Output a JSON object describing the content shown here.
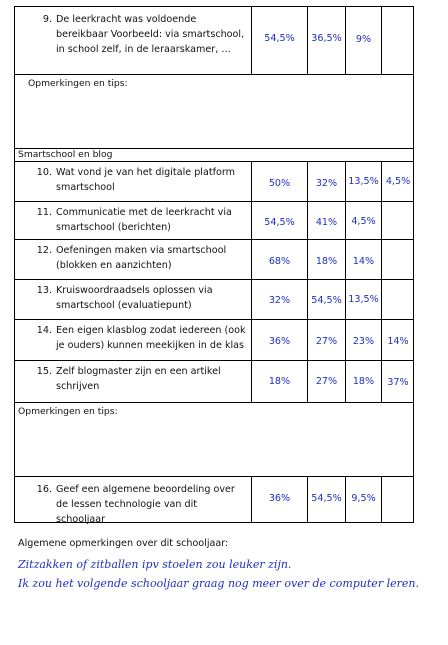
{
  "questions": [
    {
      "num": "9.",
      "text": "De leerkracht was voldoende bereikbaar Voorbeeld: via smartschool, in school zelf, in de leraarskamer, …",
      "p1": "54,5%",
      "p2": "36,5%",
      "p3": "9%",
      "p4": ""
    },
    {
      "num": "10.",
      "text": "Wat vond je van het digitale platform smartschool",
      "p1": "50%",
      "p2": "32%",
      "p3": "13,5%",
      "p4": "4,5%"
    },
    {
      "num": "11.",
      "text": "Communicatie met de leerkracht via smartschool (berichten)",
      "p1": "54,5%",
      "p2": "41%",
      "p3": "4,5%",
      "p4": ""
    },
    {
      "num": "12.",
      "text": "Oefeningen maken via smartschool (blokken en aanzichten)",
      "p1": "68%",
      "p2": "18%",
      "p3": "14%",
      "p4": ""
    },
    {
      "num": "13.",
      "text": "Kruiswoordraadsels oplossen via smartschool (evaluatiepunt)",
      "p1": "32%",
      "p2": "54,5%",
      "p3": "13,5%",
      "p4": ""
    },
    {
      "num": "14.",
      "text": "Een eigen klasblog zodat iedereen (ook je ouders) kunnen meekijken in de klas",
      "p1": "36%",
      "p2": "27%",
      "p3": "23%",
      "p4": "14%"
    },
    {
      "num": "15.",
      "text": "Zelf blogmaster zijn en een artikel schrijven",
      "p1": "18%",
      "p2": "27%",
      "p3": "18%",
      "p4": "37%"
    },
    {
      "num": "16.",
      "text": "Geef een algemene beoordeling over de lessen technologie van dit schooljaar",
      "p1": "36%",
      "p2": "54,5%",
      "p3": "9,5%",
      "p4": ""
    }
  ],
  "notes_label_1": "Opmerkingen en tips:",
  "section_title": "Smartschool en blog",
  "notes_label_2": "Opmerkingen en tips:",
  "general_label": "Algemene opmerkingen over dit schooljaar:",
  "handwritten": [
    "Zitzakken of zitballen ipv stoelen zou leuker zijn.",
    "Ik zou het volgende schooljaar graag nog meer over de computer leren."
  ]
}
